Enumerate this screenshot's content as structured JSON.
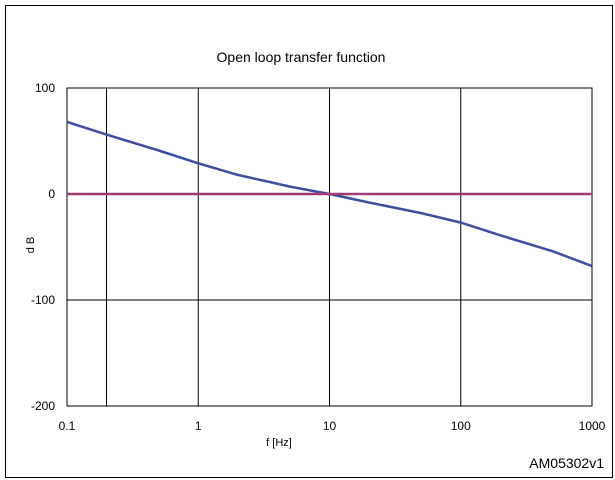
{
  "chart_data": {
    "type": "line",
    "title": "Open loop transfer function",
    "xlabel": "f [Hz]",
    "ylabel": "d B",
    "x_scale": "log",
    "xlim": [
      0.1,
      1000
    ],
    "ylim": [
      -200,
      100
    ],
    "x_ticks": [
      0.1,
      1,
      10,
      100,
      1000
    ],
    "x_tick_labels": [
      "0.1",
      "1",
      "10",
      "100",
      "1000"
    ],
    "y_ticks": [
      -200,
      -100,
      0,
      100
    ],
    "y_tick_labels": [
      "-200",
      "-100",
      "0",
      "100"
    ],
    "grid": true,
    "vertical_gridlines": [
      0.2,
      1,
      10,
      100,
      1000
    ],
    "colors": {
      "gain": "#3a4fa0",
      "zero": "#a23a76",
      "grid": "#000000"
    },
    "series": [
      {
        "color": "#3a4fa0",
        "x": [
          0.1,
          0.2,
          0.5,
          1,
          2,
          5,
          10,
          20,
          50,
          100,
          200,
          500,
          1000
        ],
        "y": [
          68,
          56,
          41,
          29,
          18,
          7,
          0,
          -8,
          -18,
          -27,
          -39,
          -54,
          -68
        ]
      },
      {
        "color": "#a23a76",
        "x": [
          0.1,
          1000
        ],
        "y": [
          0,
          0
        ]
      }
    ],
    "annotations": [
      "AM05302v1"
    ]
  }
}
